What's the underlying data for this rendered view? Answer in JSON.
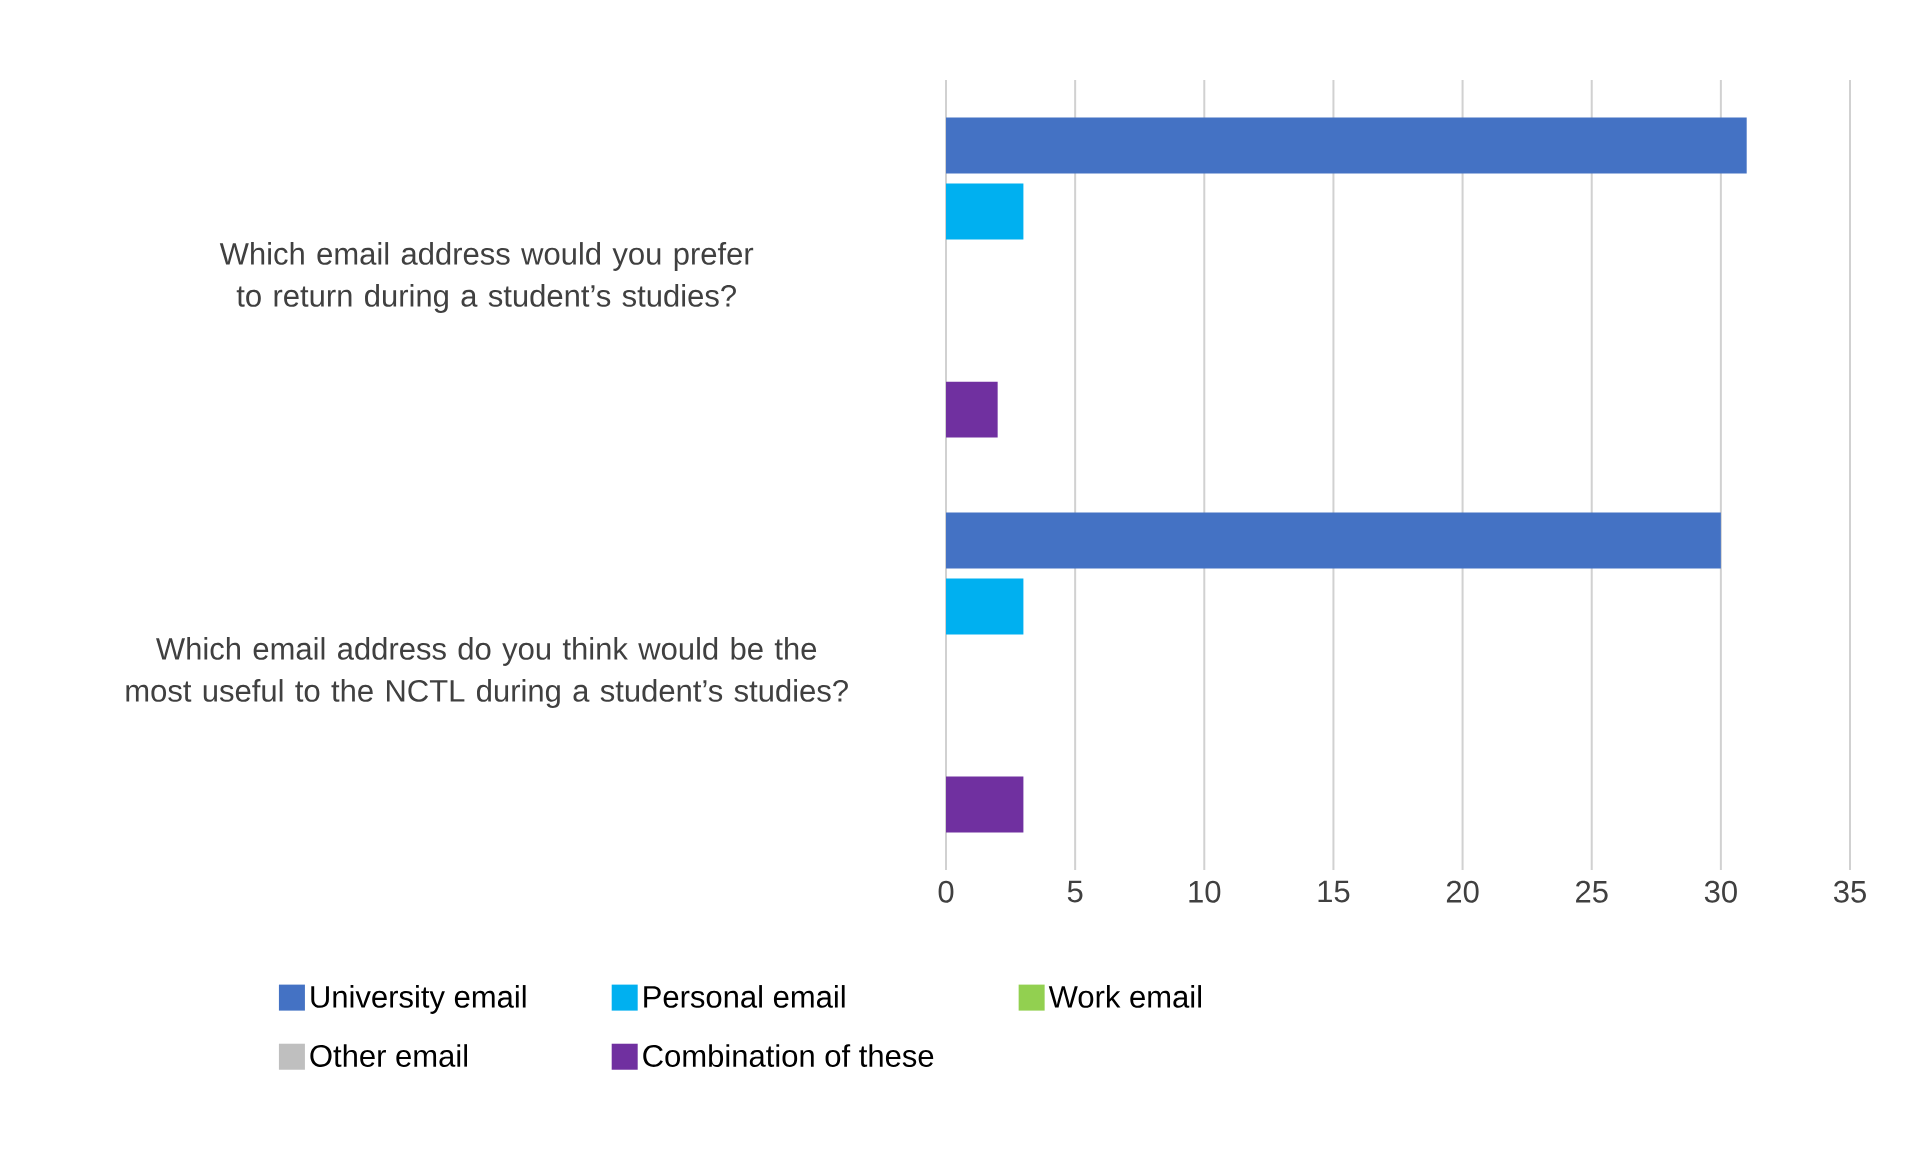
{
  "chart_data": {
    "type": "bar",
    "orientation": "horizontal",
    "categories": [
      "Which email address would you prefer to return during a student’s studies?",
      "Which email address do you think would be the most useful to the NCTL during a student’s studies?"
    ],
    "series": [
      {
        "name": "University email",
        "color": "#4472c4",
        "values": [
          31,
          30
        ]
      },
      {
        "name": "Personal email",
        "color": "#00b0f0",
        "values": [
          3,
          3
        ]
      },
      {
        "name": "Work email",
        "color": "#92d050",
        "values": [
          0,
          0
        ]
      },
      {
        "name": "Other email",
        "color": "#bfbfbf",
        "values": [
          0,
          0
        ]
      },
      {
        "name": "Combination of these",
        "color": "#7030a0",
        "values": [
          2,
          3
        ]
      }
    ],
    "xlim": [
      0,
      35
    ],
    "xticks": [
      0,
      5,
      10,
      15,
      20,
      25,
      30,
      35
    ],
    "grid": "x",
    "legend": "bottom"
  }
}
